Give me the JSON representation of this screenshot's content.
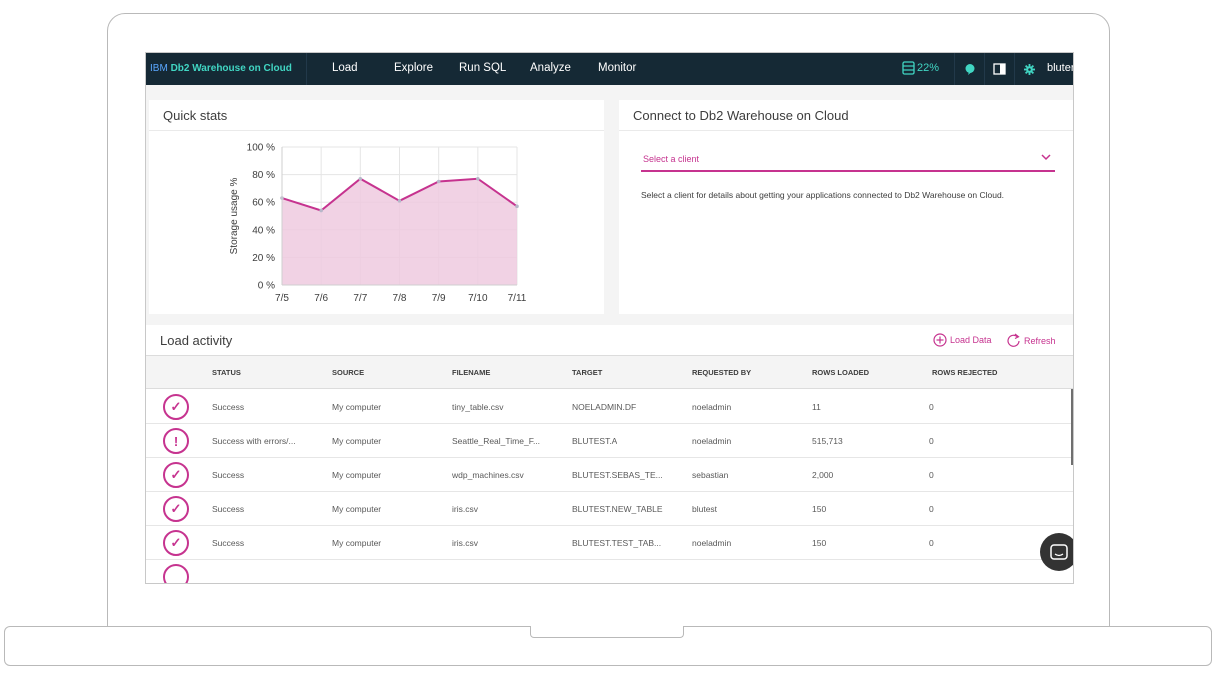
{
  "brand": {
    "prefix": "IBM ",
    "product": "Db2 Warehouse on Cloud"
  },
  "nav": {
    "items": [
      "Load",
      "Explore",
      "Run SQL",
      "Analyze",
      "Monitor"
    ]
  },
  "status": {
    "storage_percent": "22%",
    "user": "bluter"
  },
  "icons": {
    "storage": "database-icon",
    "help": "help-bubble-icon",
    "panel": "split-panel-icon",
    "settings": "gear-icon"
  },
  "quick_stats": {
    "title": "Quick stats",
    "chart_data": {
      "type": "area",
      "x": [
        "7/5",
        "7/6",
        "7/7",
        "7/8",
        "7/9",
        "7/10",
        "7/11"
      ],
      "y": [
        63,
        54,
        77,
        61,
        75,
        77,
        57
      ],
      "yticks": [
        "100 %",
        "80 %",
        "60 %",
        "40 %",
        "20 %",
        "0 %"
      ],
      "ylabel": "Storage usage %",
      "ylim": [
        0,
        100
      ],
      "grid": true,
      "line_color": "#c6338f",
      "fill_color": "#efcadf"
    }
  },
  "connect": {
    "title": "Connect to Db2 Warehouse on Cloud",
    "select_placeholder": "Select a client",
    "description": "Select a client for details about getting your applications connected to Db2 Warehouse on Cloud."
  },
  "load_activity": {
    "title": "Load activity",
    "load_data": "Load Data",
    "refresh": "Refresh",
    "columns": [
      "STATUS",
      "SOURCE",
      "FILENAME",
      "TARGET",
      "REQUESTED BY",
      "ROWS LOADED",
      "ROWS REJECTED"
    ],
    "rows": [
      {
        "icon": "✓",
        "status": "Success",
        "source": "My computer",
        "filename": "tiny_table.csv",
        "target": "NOELADMIN.DF",
        "requested_by": "noeladmin",
        "rows_loaded": "11",
        "rows_rejected": "0"
      },
      {
        "icon": "!",
        "status": "Success with errors/...",
        "source": "My computer",
        "filename": "Seattle_Real_Time_F...",
        "target": "BLUTEST.A",
        "requested_by": "noeladmin",
        "rows_loaded": "515,713",
        "rows_rejected": "0"
      },
      {
        "icon": "✓",
        "status": "Success",
        "source": "My computer",
        "filename": "wdp_machines.csv",
        "target": "BLUTEST.SEBAS_TE...",
        "requested_by": "sebastian",
        "rows_loaded": "2,000",
        "rows_rejected": "0"
      },
      {
        "icon": "✓",
        "status": "Success",
        "source": "My computer",
        "filename": "iris.csv",
        "target": "BLUTEST.NEW_TABLE",
        "requested_by": "blutest",
        "rows_loaded": "150",
        "rows_rejected": "0"
      },
      {
        "icon": "✓",
        "status": "Success",
        "source": "My computer",
        "filename": "iris.csv",
        "target": "BLUTEST.TEST_TAB...",
        "requested_by": "noeladmin",
        "rows_loaded": "150",
        "rows_rejected": "0"
      }
    ]
  }
}
